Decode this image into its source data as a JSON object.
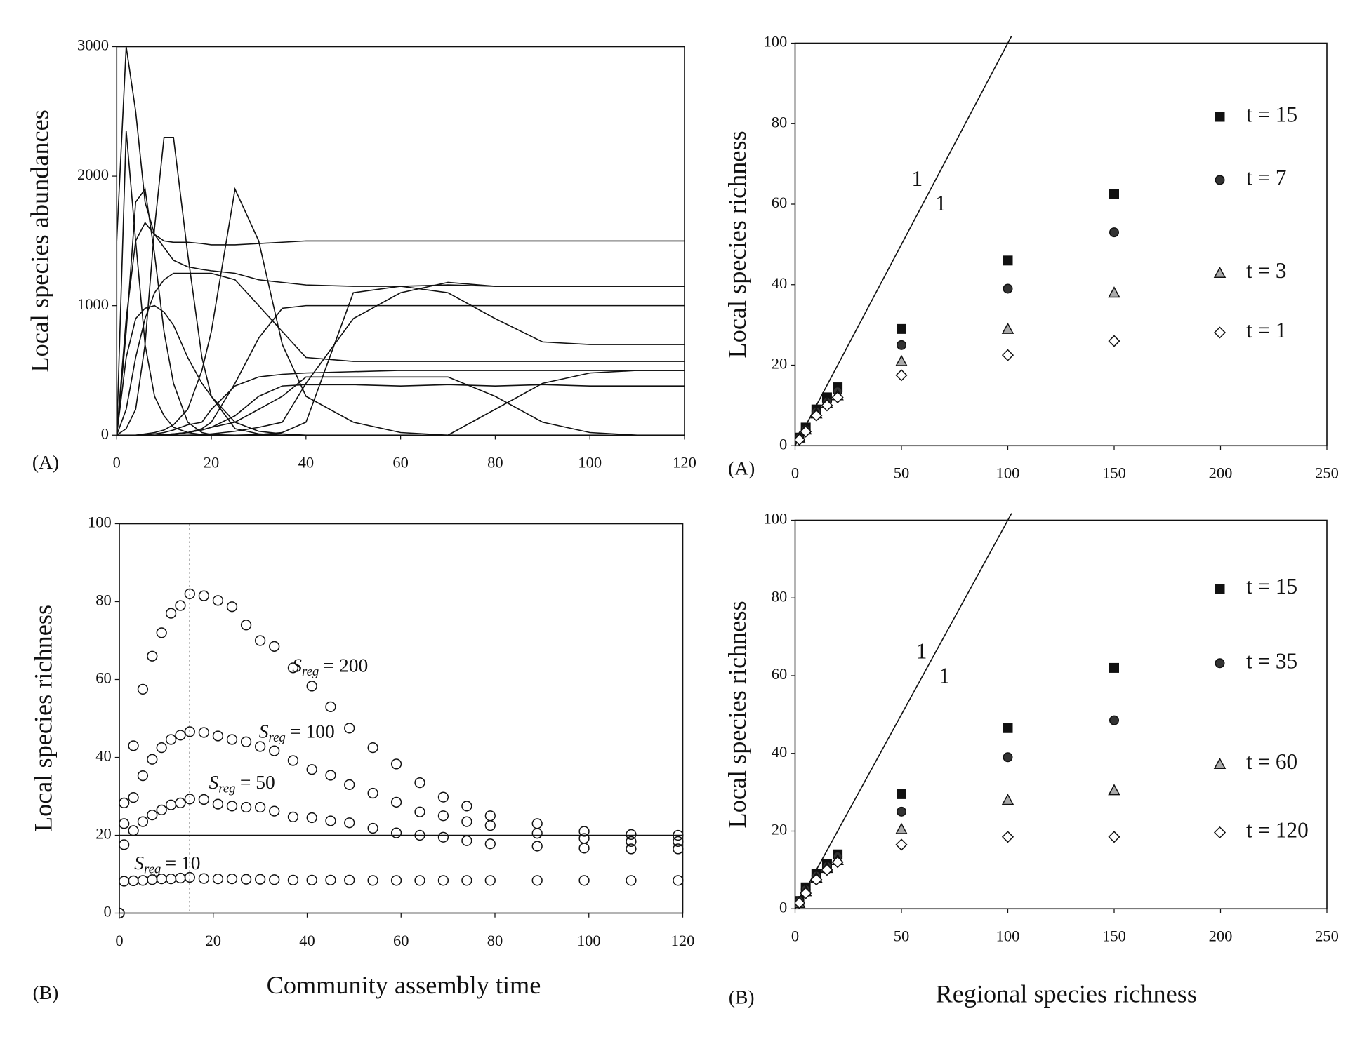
{
  "chart_data": [
    {
      "type": "line",
      "panel_label": "(A)",
      "ylabel": "Local species abundances",
      "xlim": [
        0,
        120
      ],
      "xticks": [
        0,
        20,
        40,
        60,
        80,
        100,
        120
      ],
      "ylim": [
        0,
        3000
      ],
      "yticks": [
        0,
        1000,
        2000,
        3000
      ],
      "x": [
        0,
        2,
        4,
        6,
        8,
        10,
        12,
        15,
        18,
        20,
        25,
        30,
        35,
        40,
        50,
        60,
        70,
        80,
        90,
        100,
        110,
        120
      ],
      "series": [
        {
          "color": "#111",
          "values": [
            1500,
            3000,
            2500,
            1800,
            1550,
            1500,
            1490,
            1490,
            1480,
            1470,
            1470,
            1480,
            1490,
            1500,
            1500,
            1500,
            1500,
            1500,
            1500,
            1500,
            1500,
            1500
          ]
        },
        {
          "color": "#111",
          "values": [
            0,
            2350,
            1500,
            700,
            300,
            150,
            60,
            20,
            5,
            0,
            0,
            0,
            0,
            0,
            0,
            0,
            0,
            0,
            0,
            0,
            0,
            0
          ]
        },
        {
          "color": "#111",
          "values": [
            0,
            800,
            1800,
            1900,
            1400,
            800,
            400,
            100,
            20,
            5,
            0,
            0,
            0,
            0,
            0,
            0,
            0,
            0,
            0,
            0,
            0,
            0
          ]
        },
        {
          "color": "#111",
          "values": [
            0,
            50,
            200,
            700,
            1600,
            2300,
            2300,
            1400,
            600,
            300,
            50,
            10,
            0,
            0,
            0,
            0,
            0,
            0,
            0,
            0,
            0,
            0
          ]
        },
        {
          "color": "#111",
          "values": [
            0,
            0,
            0,
            10,
            20,
            40,
            80,
            200,
            500,
            800,
            1900,
            1500,
            700,
            300,
            100,
            20,
            0,
            0,
            0,
            0,
            0,
            0
          ]
        },
        {
          "color": "#111",
          "values": [
            0,
            900,
            1500,
            1640,
            1550,
            1450,
            1350,
            1300,
            1280,
            1270,
            1250,
            1200,
            1180,
            1160,
            1150,
            1150,
            1160,
            1150,
            1150,
            1150,
            1150,
            1150
          ]
        },
        {
          "color": "#111",
          "values": [
            0,
            0,
            0,
            0,
            0,
            0,
            5,
            20,
            50,
            100,
            400,
            750,
            980,
            1000,
            1000,
            1000,
            1000,
            1000,
            1000,
            1000,
            1000,
            1000
          ]
        },
        {
          "color": "#111",
          "values": [
            0,
            0,
            0,
            0,
            0,
            0,
            0,
            0,
            0,
            0,
            0,
            5,
            20,
            100,
            1100,
            1150,
            1100,
            900,
            720,
            700,
            700,
            700
          ]
        },
        {
          "color": "#111",
          "values": [
            0,
            0,
            0,
            0,
            0,
            0,
            0,
            0,
            5,
            10,
            30,
            60,
            100,
            400,
            900,
            1100,
            1180,
            1150,
            1150,
            1150,
            1150,
            1150
          ]
        },
        {
          "color": "#111",
          "values": [
            0,
            600,
            900,
            980,
            1000,
            950,
            850,
            600,
            400,
            300,
            100,
            30,
            10,
            0,
            0,
            0,
            0,
            0,
            0,
            0,
            0,
            0
          ]
        },
        {
          "color": "#111",
          "values": [
            0,
            0,
            0,
            5,
            10,
            20,
            40,
            80,
            100,
            200,
            380,
            450,
            470,
            480,
            490,
            500,
            500,
            500,
            500,
            500,
            500,
            500
          ]
        },
        {
          "color": "#111",
          "values": [
            0,
            0,
            0,
            0,
            0,
            5,
            10,
            20,
            40,
            60,
            150,
            300,
            380,
            390,
            390,
            380,
            390,
            380,
            390,
            380,
            380,
            380
          ]
        },
        {
          "color": "#111",
          "values": [
            0,
            0,
            0,
            0,
            0,
            0,
            0,
            0,
            0,
            0,
            0,
            0,
            0,
            0,
            0,
            0,
            0,
            200,
            400,
            480,
            500,
            500
          ]
        },
        {
          "color": "#111",
          "values": [
            0,
            0,
            0,
            0,
            0,
            5,
            10,
            20,
            40,
            60,
            100,
            200,
            300,
            450,
            450,
            450,
            450,
            300,
            100,
            20,
            0,
            0
          ]
        },
        {
          "color": "#111",
          "values": [
            0,
            200,
            600,
            900,
            1100,
            1200,
            1250,
            1250,
            1250,
            1250,
            1200,
            1000,
            800,
            600,
            570,
            570,
            570,
            570,
            570,
            570,
            570,
            570
          ]
        }
      ]
    },
    {
      "type": "scatter",
      "panel_label": "(A)",
      "ylabel": "Local species richness",
      "xlim": [
        0,
        250
      ],
      "xticks": [
        0,
        50,
        100,
        150,
        200,
        250
      ],
      "ylim": [
        0,
        100
      ],
      "yticks": [
        0,
        20,
        40,
        60,
        80,
        100
      ],
      "reference_line": {
        "slope": 1,
        "labels": [
          "1",
          "1"
        ]
      },
      "legend": "right",
      "x": [
        2,
        5,
        10,
        15,
        20,
        50,
        100,
        150
      ],
      "series": [
        {
          "name": "t = 15",
          "marker": "square",
          "color": "#111",
          "values": [
            2,
            4.5,
            9,
            12,
            14.5,
            29,
            46,
            62.5
          ]
        },
        {
          "name": "t = 7",
          "marker": "circle",
          "color": "#333",
          "values": [
            2,
            4,
            8.5,
            11,
            13.5,
            25,
            39,
            53
          ]
        },
        {
          "name": "t = 3",
          "marker": "triangle",
          "color": "#aaa",
          "values": [
            2,
            4,
            8,
            10.5,
            12.5,
            21,
            29,
            38
          ]
        },
        {
          "name": "t = 1",
          "marker": "diamond",
          "color": "#fff",
          "values": [
            1.5,
            3.5,
            7.5,
            10,
            12,
            17.5,
            22.5,
            26
          ]
        }
      ]
    },
    {
      "type": "scatter",
      "panel_label": "(B)",
      "ylabel": "Local species richness",
      "xlabel": "Community assembly time",
      "xlim": [
        0,
        120
      ],
      "xticks": [
        0,
        20,
        40,
        60,
        80,
        100,
        120
      ],
      "ylim": [
        0,
        100
      ],
      "yticks": [
        0,
        20,
        40,
        60,
        80,
        100
      ],
      "vline": 15,
      "hline": 20,
      "x": [
        0,
        1,
        3,
        5,
        7,
        9,
        11,
        13,
        15,
        18,
        21,
        24,
        27,
        30,
        33,
        37,
        41,
        45,
        49,
        54,
        59,
        64,
        69,
        74,
        79,
        89,
        99,
        109,
        119
      ],
      "series": [
        {
          "marker": "open-circle",
          "color": "#111",
          "label": {
            "main": "S",
            "sub": "reg",
            "rest": "= 200"
          },
          "values": [
            0,
            28.3,
            43,
            57.5,
            66,
            72,
            77,
            79,
            82,
            81.5,
            80.3,
            78.7,
            74,
            70,
            68.5,
            63,
            58.3,
            53,
            47.5,
            42.5,
            38.3,
            33.5,
            29.8,
            27.5,
            25,
            23,
            21,
            20.2,
            20
          ]
        },
        {
          "marker": "open-circle",
          "color": "#111",
          "label": {
            "main": "S",
            "sub": "reg",
            "rest": "= 100"
          },
          "values": [
            0,
            23,
            29.7,
            35.3,
            39.5,
            42.5,
            44.6,
            45.7,
            46.6,
            46.4,
            45.5,
            44.6,
            44,
            42.8,
            41.7,
            39.2,
            36.9,
            35.4,
            33,
            30.8,
            28.5,
            26,
            25,
            23.5,
            22.5,
            20.5,
            19.2,
            18.4,
            18.4
          ]
        },
        {
          "marker": "open-circle",
          "color": "#111",
          "label": {
            "main": "S",
            "sub": "reg",
            "rest": "= 50"
          },
          "values": [
            0,
            17.6,
            21.2,
            23.5,
            25.2,
            26.5,
            27.8,
            28.3,
            29.3,
            29.2,
            28,
            27.5,
            27.2,
            27.2,
            26.2,
            24.7,
            24.5,
            23.7,
            23.2,
            21.8,
            20.6,
            20,
            19.5,
            18.6,
            17.8,
            17.2,
            16.7,
            16.5,
            16.5
          ]
        },
        {
          "marker": "open-circle",
          "color": "#111",
          "label": {
            "main": "S",
            "sub": "reg",
            "rest": "= 10"
          },
          "values": [
            0,
            8.2,
            8.3,
            8.4,
            8.6,
            8.8,
            8.8,
            9,
            9.2,
            8.9,
            8.8,
            8.8,
            8.7,
            8.7,
            8.6,
            8.5,
            8.5,
            8.5,
            8.5,
            8.4,
            8.4,
            8.4,
            8.4,
            8.4,
            8.4,
            8.4,
            8.4,
            8.4,
            8.4
          ]
        }
      ]
    },
    {
      "type": "scatter",
      "panel_label": "(B)",
      "ylabel": "Local species richness",
      "xlabel": "Regional species richness",
      "xlim": [
        0,
        250
      ],
      "xticks": [
        0,
        50,
        100,
        150,
        200,
        250
      ],
      "ylim": [
        0,
        100
      ],
      "yticks": [
        0,
        20,
        40,
        60,
        80,
        100
      ],
      "reference_line": {
        "slope": 1,
        "labels": [
          "1",
          "1"
        ]
      },
      "legend": "right",
      "x": [
        2,
        5,
        10,
        15,
        20,
        50,
        100,
        150
      ],
      "series": [
        {
          "name": "t = 15",
          "marker": "square",
          "color": "#111",
          "values": [
            2,
            5.5,
            9,
            11.5,
            14,
            29.5,
            46.5,
            62
          ]
        },
        {
          "name": "t = 35",
          "marker": "circle",
          "color": "#333",
          "values": [
            2,
            5,
            8.5,
            11,
            13.5,
            25,
            39,
            48.5
          ]
        },
        {
          "name": "t = 60",
          "marker": "triangle",
          "color": "#aaa",
          "values": [
            1.5,
            4.5,
            8,
            10.5,
            12.5,
            20.5,
            28,
            30.5
          ]
        },
        {
          "name": "t = 120",
          "marker": "diamond",
          "color": "#fff",
          "values": [
            1.5,
            4,
            7.5,
            10,
            12,
            16.5,
            18.5,
            18.5
          ]
        }
      ]
    }
  ]
}
